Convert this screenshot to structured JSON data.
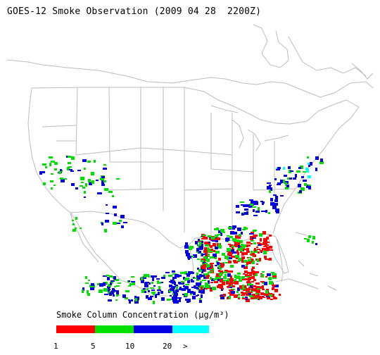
{
  "title": "GOES-12 Smoke Observation (2009 04 28  2200Z)",
  "legend": {
    "title": "Smoke Column Concentration (µg/m³)",
    "ticks": [
      "1",
      "5",
      "10",
      "20",
      ">"
    ],
    "bins": [
      {
        "from": "1",
        "to": "5",
        "color": "#ff0000"
      },
      {
        "from": "5",
        "to": "10",
        "color": "#00e000"
      },
      {
        "from": "10",
        "to": "20",
        "color": "#0000e0"
      },
      {
        "from": "20",
        "to": ">",
        "color": "#00ffff"
      }
    ]
  },
  "colors": {
    "boundary_lines": "#bdbdbd",
    "background": "#ffffff"
  }
}
